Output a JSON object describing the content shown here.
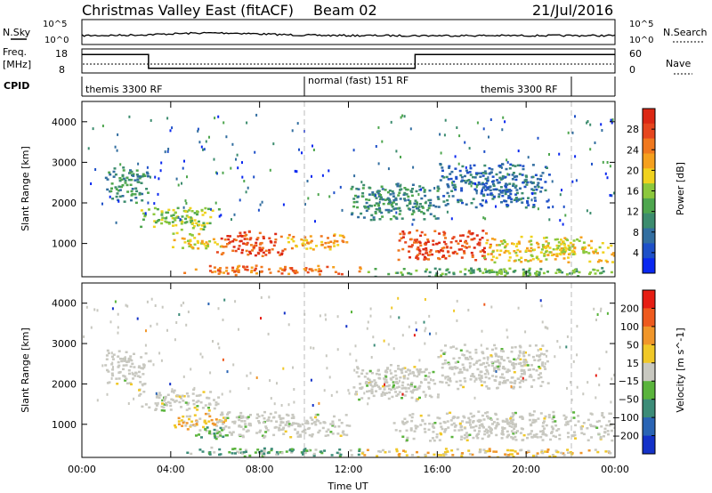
{
  "header": {
    "station": "Christmas Valley East (fitACF)",
    "beam": "Beam 02",
    "date": "21/Jul/2016"
  },
  "status_panels": {
    "nsky_label": "N.Sky",
    "nsky_ticks": [
      "10^5",
      "10^0"
    ],
    "nsearch_label": "N.Search",
    "nsearch_ticks": [
      "10^5",
      "10^0"
    ],
    "freq_label": "Freq.",
    "freq_unit": "[MHz]",
    "freq_ticks": [
      "18",
      "8"
    ],
    "nave_label": "Nave",
    "nave_ticks": [
      "60",
      "0"
    ],
    "cpid_label": "CPID",
    "cpid_segments": [
      {
        "label": "themis 3300 RF",
        "start_h": 0,
        "end_h": 10
      },
      {
        "label": "normal (fast) 151 RF",
        "start_h": 10,
        "end_h": 22
      },
      {
        "label": "themis 3300 RF",
        "start_h": 22,
        "end_h": 24
      }
    ],
    "freq_profile": [
      {
        "start_h": 0,
        "end_h": 3,
        "mhz": 16.5
      },
      {
        "start_h": 3,
        "end_h": 15,
        "mhz": 9.5
      },
      {
        "start_h": 15,
        "end_h": 24,
        "mhz": 16.5
      }
    ]
  },
  "chart_data": [
    {
      "type": "heatmap",
      "name": "power",
      "ylabel": "Slant Range [km]",
      "xlabel": "Time UT",
      "xlim_hours": [
        0,
        24
      ],
      "ylim_km": [
        180,
        4500
      ],
      "x_ticks": [
        "00:00",
        "04:00",
        "08:00",
        "12:00",
        "16:00",
        "20:00",
        "00:00"
      ],
      "y_ticks": [
        "1000",
        "2000",
        "3000",
        "4000"
      ],
      "colorbar": {
        "label": "Power [dB]",
        "ticks": [
          "4",
          "8",
          "12",
          "16",
          "20",
          "24",
          "28"
        ],
        "colors": [
          "#0a28f0",
          "#1e50c8",
          "#326ea0",
          "#3c8c6e",
          "#4ea64e",
          "#8cc83c",
          "#f0d21e",
          "#f5a01e",
          "#f0781e",
          "#e6461e",
          "#dc2814"
        ]
      },
      "echo_regions": [
        {
          "t0": 2.5,
          "t1": 6.3,
          "r0": 1350,
          "r1": 1900,
          "value_level": 5
        },
        {
          "t0": 4.0,
          "t1": 6.3,
          "r0": 900,
          "r1": 1300,
          "value_level": 6
        },
        {
          "t0": 6.0,
          "t1": 9.0,
          "r0": 650,
          "r1": 1350,
          "value_level": 9
        },
        {
          "t0": 9.0,
          "t1": 12.0,
          "r0": 850,
          "r1": 1250,
          "value_level": 7
        },
        {
          "t0": 4.5,
          "t1": 12.5,
          "r0": 250,
          "r1": 480,
          "value_level": 8
        },
        {
          "t0": 14.2,
          "t1": 18.5,
          "r0": 600,
          "r1": 1350,
          "value_level": 9
        },
        {
          "t0": 18.0,
          "t1": 24.0,
          "r0": 550,
          "r1": 1200,
          "value_level": 6
        },
        {
          "t0": 12.5,
          "t1": 24.0,
          "r0": 200,
          "r1": 420,
          "value_level": 4
        },
        {
          "t0": 1.0,
          "t1": 3.0,
          "r0": 2000,
          "r1": 2900,
          "value_level": 3
        },
        {
          "t0": 12.0,
          "t1": 16.0,
          "r0": 1600,
          "r1": 2500,
          "value_level": 3
        },
        {
          "t0": 16.0,
          "t1": 21.0,
          "r0": 1900,
          "r1": 3000,
          "value_level": 2
        }
      ]
    },
    {
      "type": "heatmap",
      "name": "velocity",
      "ylabel": "Slant Range [km]",
      "xlabel": "Time UT",
      "xlim_hours": [
        0,
        24
      ],
      "ylim_km": [
        180,
        4500
      ],
      "x_ticks": [
        "00:00",
        "04:00",
        "08:00",
        "12:00",
        "16:00",
        "20:00",
        "00:00"
      ],
      "y_ticks": [
        "1000",
        "2000",
        "3000",
        "4000"
      ],
      "colorbar": {
        "label": "Velocity [m s^-1]",
        "ticks": [
          "200",
          "100",
          "50",
          "15",
          "−15",
          "−50",
          "−100",
          "−200"
        ],
        "colors": [
          "#1432c8",
          "#2a64b4",
          "#3c8c78",
          "#5ab43c",
          "#c8c8c0",
          "#f0c828",
          "#f0962a",
          "#ee5a1e",
          "#e61e14"
        ]
      },
      "echo_regions": [
        {
          "t0": 2.5,
          "t1": 6.3,
          "r0": 1350,
          "r1": 1900,
          "value_level": 4
        },
        {
          "t0": 4.0,
          "t1": 6.5,
          "r0": 900,
          "r1": 1300,
          "value_level": 5
        },
        {
          "t0": 5.0,
          "t1": 6.5,
          "r0": 650,
          "r1": 950,
          "value_level": 3
        },
        {
          "t0": 6.0,
          "t1": 12.0,
          "r0": 700,
          "r1": 1350,
          "value_level": 4
        },
        {
          "t0": 4.5,
          "t1": 12.5,
          "r0": 230,
          "r1": 450,
          "value_level": 3
        },
        {
          "t0": 14.0,
          "t1": 24.0,
          "r0": 600,
          "r1": 1350,
          "value_level": 4
        },
        {
          "t0": 12.5,
          "t1": 24.0,
          "r0": 200,
          "r1": 420,
          "value_level": 5
        },
        {
          "t0": 1.0,
          "t1": 3.0,
          "r0": 2000,
          "r1": 2900,
          "value_level": 4
        },
        {
          "t0": 12.0,
          "t1": 16.0,
          "r0": 1600,
          "r1": 2500,
          "value_level": 4
        },
        {
          "t0": 16.0,
          "t1": 21.0,
          "r0": 1900,
          "r1": 3000,
          "value_level": 4
        }
      ]
    }
  ]
}
